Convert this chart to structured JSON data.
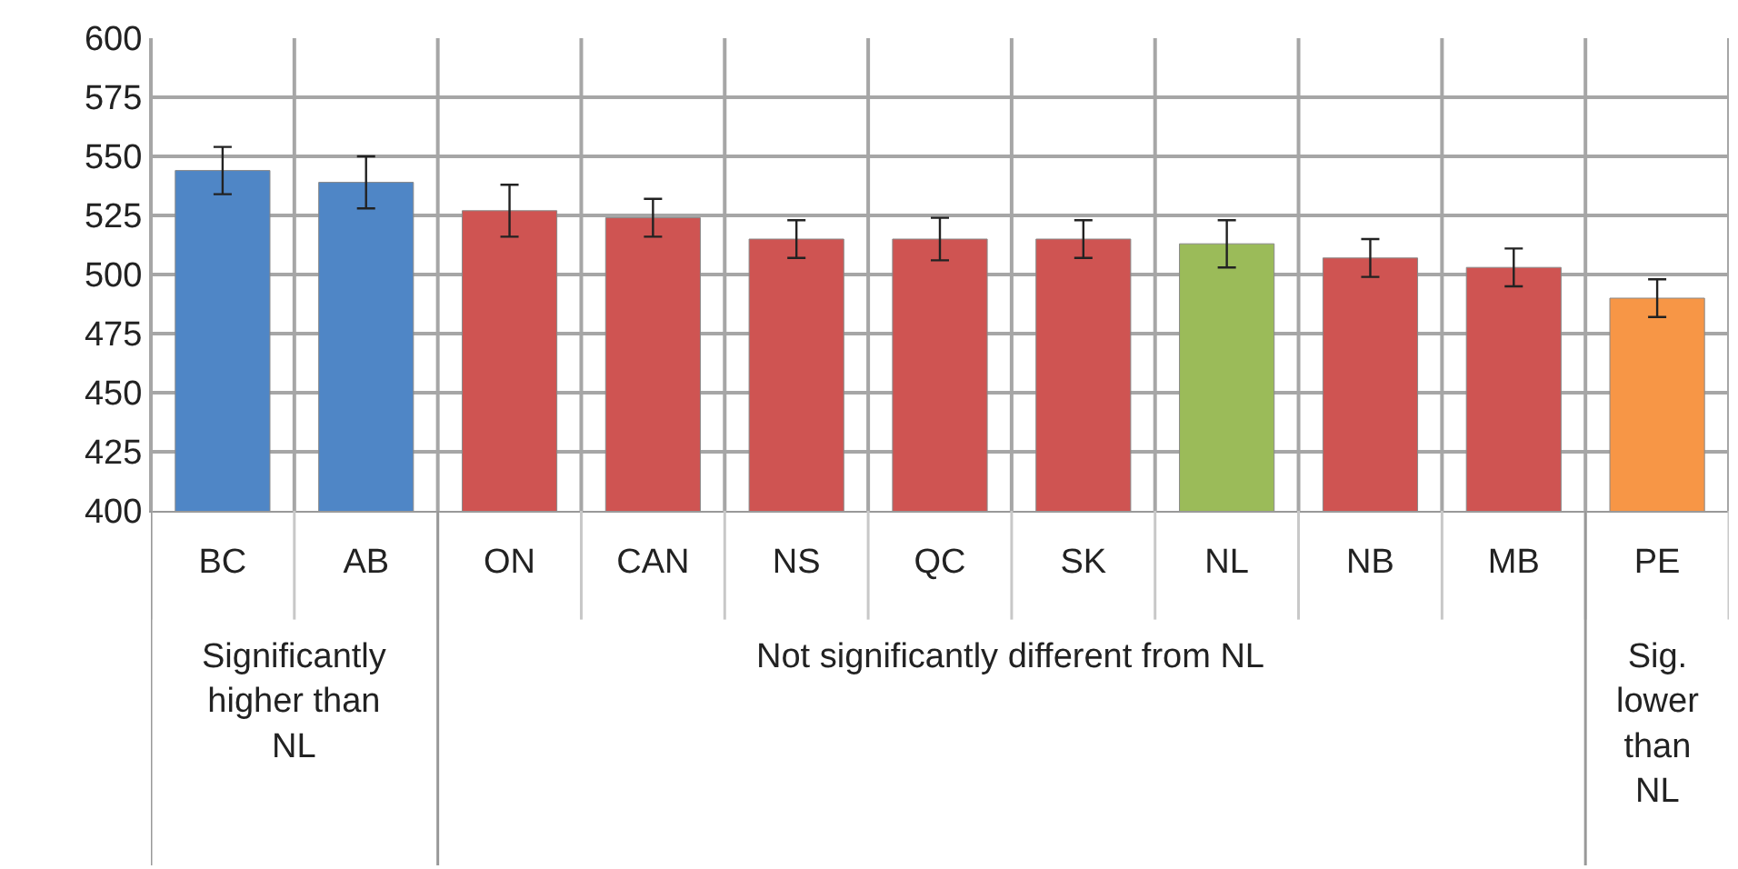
{
  "chart_data": {
    "type": "bar",
    "categories": [
      "BC",
      "AB",
      "ON",
      "CAN",
      "NS",
      "QC",
      "SK",
      "NL",
      "NB",
      "MB",
      "PE"
    ],
    "values": [
      544,
      539,
      527,
      524,
      515,
      515,
      515,
      513,
      507,
      503,
      490
    ],
    "errors": [
      10,
      11,
      11,
      8,
      8,
      9,
      8,
      10,
      8,
      8,
      8
    ],
    "colors": [
      "#4f86c6",
      "#4f86c6",
      "#cf5452",
      "#cf5452",
      "#cf5452",
      "#cf5452",
      "#cf5452",
      "#9bbb59",
      "#cf5452",
      "#cf5452",
      "#f79646"
    ],
    "ylim": [
      400,
      600
    ],
    "yticks": [
      400,
      425,
      450,
      475,
      500,
      525,
      550,
      575,
      600
    ],
    "grid": true,
    "annotations": [
      "Significantly\nhigher than\nNL",
      "Not significantly different from NL",
      "Sig.\nlower\nthan\nNL"
    ]
  }
}
